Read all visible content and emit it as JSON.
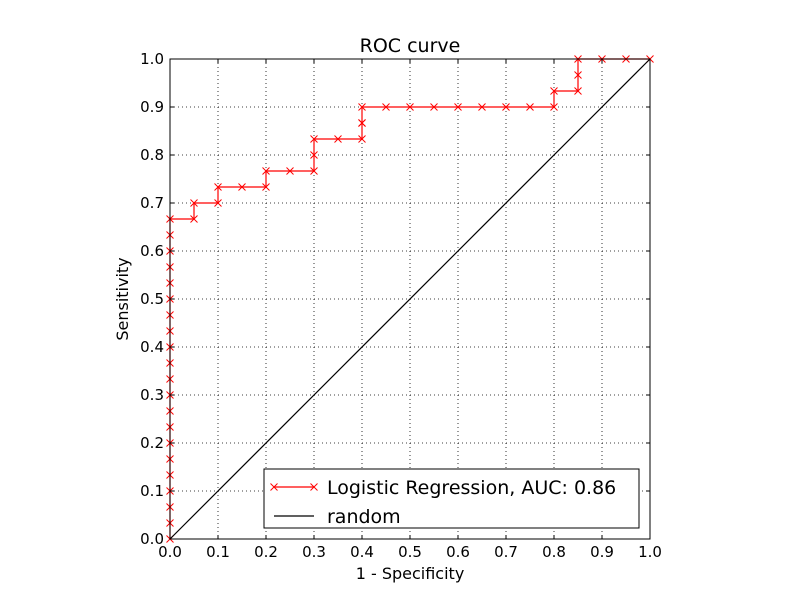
{
  "chart_data": {
    "type": "line",
    "title": "ROC curve",
    "xlabel": "1 - Specificity",
    "ylabel": "Sensitivity",
    "xlim": [
      0.0,
      1.0
    ],
    "ylim": [
      0.0,
      1.0
    ],
    "grid": true,
    "xticks": [
      0.0,
      0.1,
      0.2,
      0.3,
      0.4,
      0.5,
      0.6,
      0.7,
      0.8,
      0.9,
      1.0
    ],
    "yticks": [
      0.0,
      0.1,
      0.2,
      0.3,
      0.4,
      0.5,
      0.6,
      0.7,
      0.8,
      0.9,
      1.0
    ],
    "xtick_labels": [
      "0.0",
      "0.1",
      "0.2",
      "0.3",
      "0.4",
      "0.5",
      "0.6",
      "0.7",
      "0.8",
      "0.9",
      "1.0"
    ],
    "ytick_labels": [
      "0.0",
      "0.1",
      "0.2",
      "0.3",
      "0.4",
      "0.5",
      "0.6",
      "0.7",
      "0.8",
      "0.9",
      "1.0"
    ],
    "legend_position": "lower-right",
    "series": [
      {
        "name": "Logistic Regression, AUC: 0.86",
        "color": "#ff0000",
        "marker": "x",
        "x": [
          0.0,
          0.0,
          0.0,
          0.0,
          0.0,
          0.0,
          0.0,
          0.0,
          0.0,
          0.0,
          0.0,
          0.0,
          0.0,
          0.0,
          0.0,
          0.0,
          0.0,
          0.0,
          0.0,
          0.0,
          0.0,
          0.05,
          0.05,
          0.1,
          0.1,
          0.15,
          0.2,
          0.2,
          0.25,
          0.3,
          0.3,
          0.3,
          0.35,
          0.4,
          0.4,
          0.4,
          0.4,
          0.45,
          0.5,
          0.55,
          0.6,
          0.65,
          0.7,
          0.75,
          0.8,
          0.8,
          0.85,
          0.85,
          0.85,
          0.9,
          0.95,
          1.0
        ],
        "y": [
          0.0,
          0.0333,
          0.0667,
          0.1,
          0.1333,
          0.1667,
          0.2,
          0.2333,
          0.2667,
          0.3,
          0.3333,
          0.3667,
          0.4,
          0.4333,
          0.4667,
          0.5,
          0.5333,
          0.5667,
          0.6,
          0.6333,
          0.6667,
          0.6667,
          0.7,
          0.7,
          0.7333,
          0.7333,
          0.7333,
          0.7667,
          0.7667,
          0.7667,
          0.8,
          0.8333,
          0.8333,
          0.8333,
          0.8667,
          0.8667,
          0.9,
          0.9,
          0.9,
          0.9,
          0.9,
          0.9,
          0.9,
          0.9,
          0.9,
          0.9333,
          0.9333,
          0.9667,
          1.0,
          1.0,
          1.0,
          1.0
        ]
      },
      {
        "name": "random",
        "color": "#000000",
        "marker": "",
        "x": [
          0.0,
          1.0
        ],
        "y": [
          0.0,
          1.0
        ]
      }
    ]
  }
}
